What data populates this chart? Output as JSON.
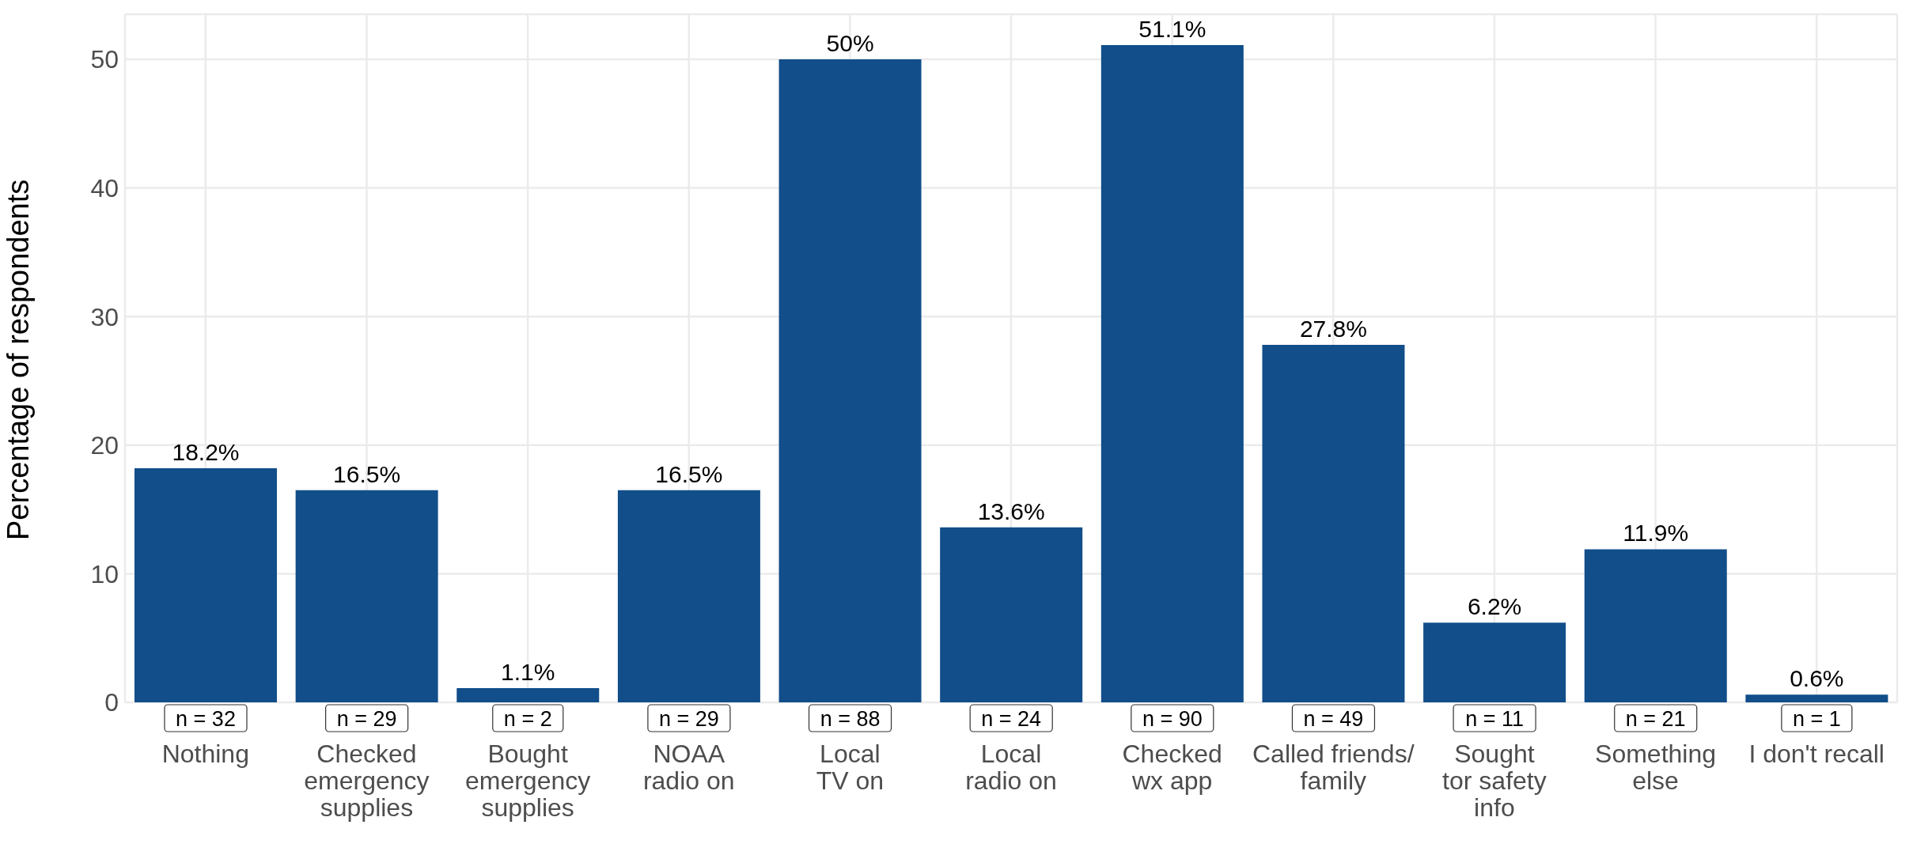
{
  "chart_data": {
    "type": "bar",
    "ylabel": "Percentage of respondents",
    "categories": [
      "Nothing",
      "Checked\nemergency\nsupplies",
      "Bought\nemergency\nsupplies",
      "NOAA\nradio on",
      "Local\nTV on",
      "Local\nradio on",
      "Checked\nwx app",
      "Called friends/\nfamily",
      "Sought\ntor safety\ninfo",
      "Something\nelse",
      "I don't recall"
    ],
    "values": [
      18.2,
      16.5,
      1.1,
      16.5,
      50,
      13.6,
      51.1,
      27.8,
      6.2,
      11.9,
      0.6
    ],
    "value_labels": [
      "18.2%",
      "16.5%",
      "1.1%",
      "16.5%",
      "50%",
      "13.6%",
      "51.1%",
      "27.8%",
      "6.2%",
      "11.9%",
      "0.6%"
    ],
    "color": "#114e8a",
    "ylim": [
      0,
      53.5
    ],
    "yticks": [
      0,
      10,
      20,
      30,
      40,
      50
    ],
    "grid": true,
    "annotations": [
      {
        "text": "n = 32",
        "x": "Nothing",
        "y": 0
      },
      {
        "text": "n = 29",
        "x": "Checked\nemergency\nsupplies",
        "y": 0
      },
      {
        "text": "n = 2",
        "x": "Bought\nemergency\nsupplies",
        "y": 0
      },
      {
        "text": "n = 29",
        "x": "NOAA\nradio on",
        "y": 0
      },
      {
        "text": "n = 88",
        "x": "Local\nTV on",
        "y": 0
      },
      {
        "text": "n = 24",
        "x": "Local\nradio on",
        "y": 0
      },
      {
        "text": "n = 90",
        "x": "Checked\nwx app",
        "y": 0
      },
      {
        "text": "n = 49",
        "x": "Called friends/\nfamily",
        "y": 0
      },
      {
        "text": "n = 11",
        "x": "Sought\ntor safety\ninfo",
        "y": 0
      },
      {
        "text": "n = 21",
        "x": "Something\nelse",
        "y": 0
      },
      {
        "text": "n = 1",
        "x": "I don't recall",
        "y": 0
      }
    ]
  }
}
